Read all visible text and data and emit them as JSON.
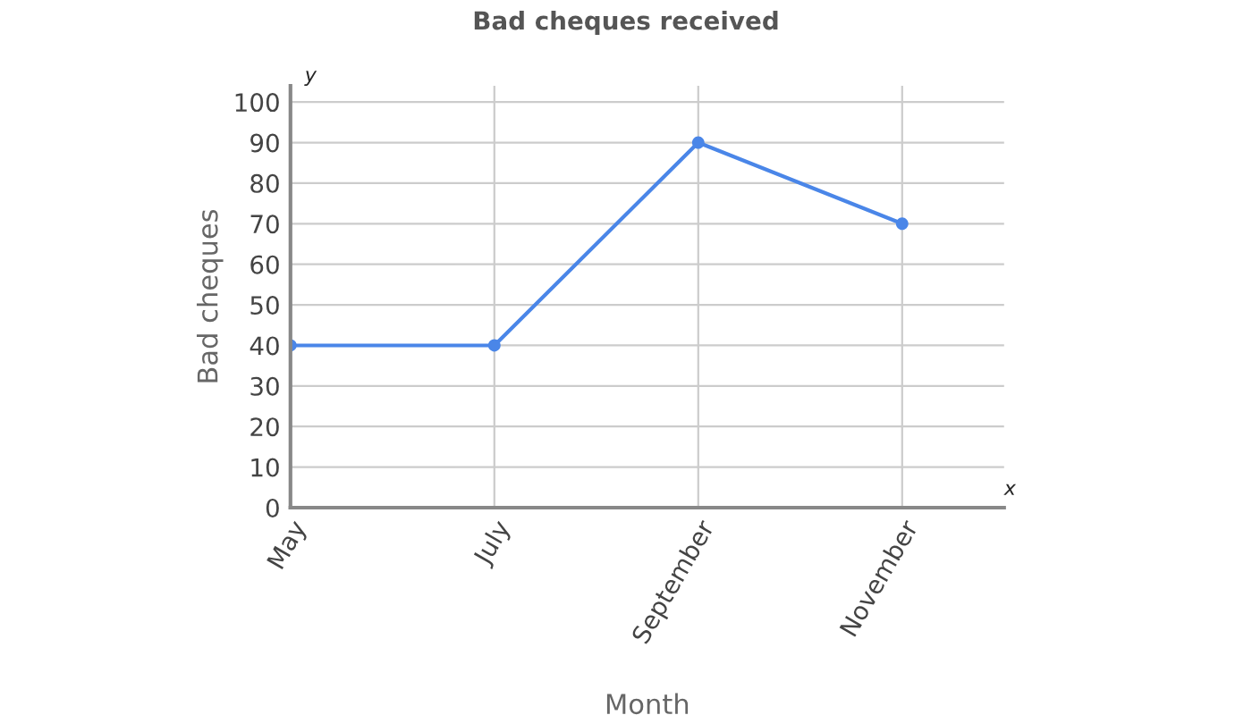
{
  "chart_data": {
    "type": "line",
    "title": "Bad cheques received",
    "xlabel": "Month",
    "ylabel": "Bad cheques",
    "annotations": [
      "y",
      "x"
    ],
    "categories": [
      "May",
      "July",
      "September",
      "November"
    ],
    "series": [
      {
        "color": "#4a86e8",
        "values": [
          40,
          40,
          90,
          70
        ]
      }
    ],
    "ylim": [
      0,
      104
    ],
    "yticks": [
      0,
      10,
      20,
      30,
      40,
      50,
      60,
      70,
      80,
      90,
      100
    ],
    "grid": true,
    "marker": "circle",
    "line_style": "solid",
    "legend": false
  }
}
